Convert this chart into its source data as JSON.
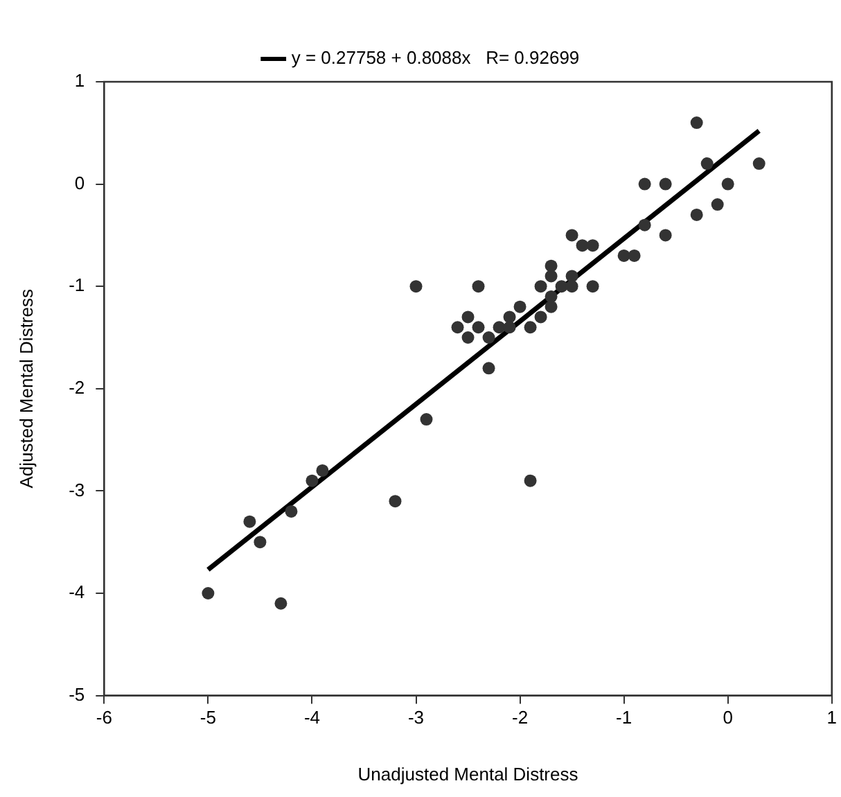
{
  "chart_data": {
    "type": "scatter",
    "xlabel": "Unadjusted Mental Distress",
    "ylabel": "Adjusted Mental Distress",
    "xlim": [
      -6,
      1
    ],
    "xticks": [
      -6,
      -5,
      -4,
      -3,
      -2,
      -1,
      0,
      1
    ],
    "ylim": [
      -5,
      1
    ],
    "yticks": [
      -5,
      -4,
      -3,
      -2,
      -1,
      0,
      1
    ],
    "grid": false,
    "legend": "top",
    "marker": "circle",
    "series": [
      {
        "type": "scatter",
        "color": "#333333",
        "x": [
          -5,
          -4.6,
          -4.5,
          -4.3,
          -4.2,
          -4,
          -3.9,
          -3.2,
          -3,
          -2.9,
          -2.6,
          -2.5,
          -2.5,
          -2.4,
          -2.4,
          -2.3,
          -2.3,
          -2.2,
          -2.1,
          -2.1,
          -2,
          -1.9,
          -1.9,
          -1.8,
          -1.8,
          -1.7,
          -1.7,
          -1.7,
          -1.7,
          -1.6,
          -1.5,
          -1.5,
          -1.5,
          -1.4,
          -1.3,
          -1.3,
          -1,
          -0.9,
          -0.8,
          -0.8,
          -0.6,
          -0.6,
          -0.3,
          -0.3,
          -0.2,
          -0.1,
          0,
          0.3
        ],
        "values": [
          -4,
          -3.3,
          -3.5,
          -4.1,
          -3.2,
          -2.9,
          -2.8,
          -3.1,
          -1,
          -2.3,
          -1.4,
          -1.3,
          -1.5,
          -1,
          -1.4,
          -1.5,
          -1.8,
          -1.4,
          -1.3,
          -1.4,
          -1.2,
          -1.4,
          -2.9,
          -1,
          -1.3,
          -0.8,
          -0.9,
          -1.1,
          -1.2,
          -1,
          -0.9,
          -1,
          -0.5,
          -0.6,
          -0.6,
          -1,
          -0.7,
          -0.7,
          0,
          -0.4,
          0,
          -0.5,
          0.6,
          -0.3,
          0.2,
          -0.2,
          0,
          0.2
        ]
      },
      {
        "type": "line",
        "name": "y = 0.27758 + 0.8088x   R= 0.92699",
        "color": "#000000",
        "marker": "none",
        "line_style": "solid",
        "x": [
          -5,
          0.3
        ],
        "values": [
          -3.77,
          0.52
        ]
      }
    ]
  }
}
